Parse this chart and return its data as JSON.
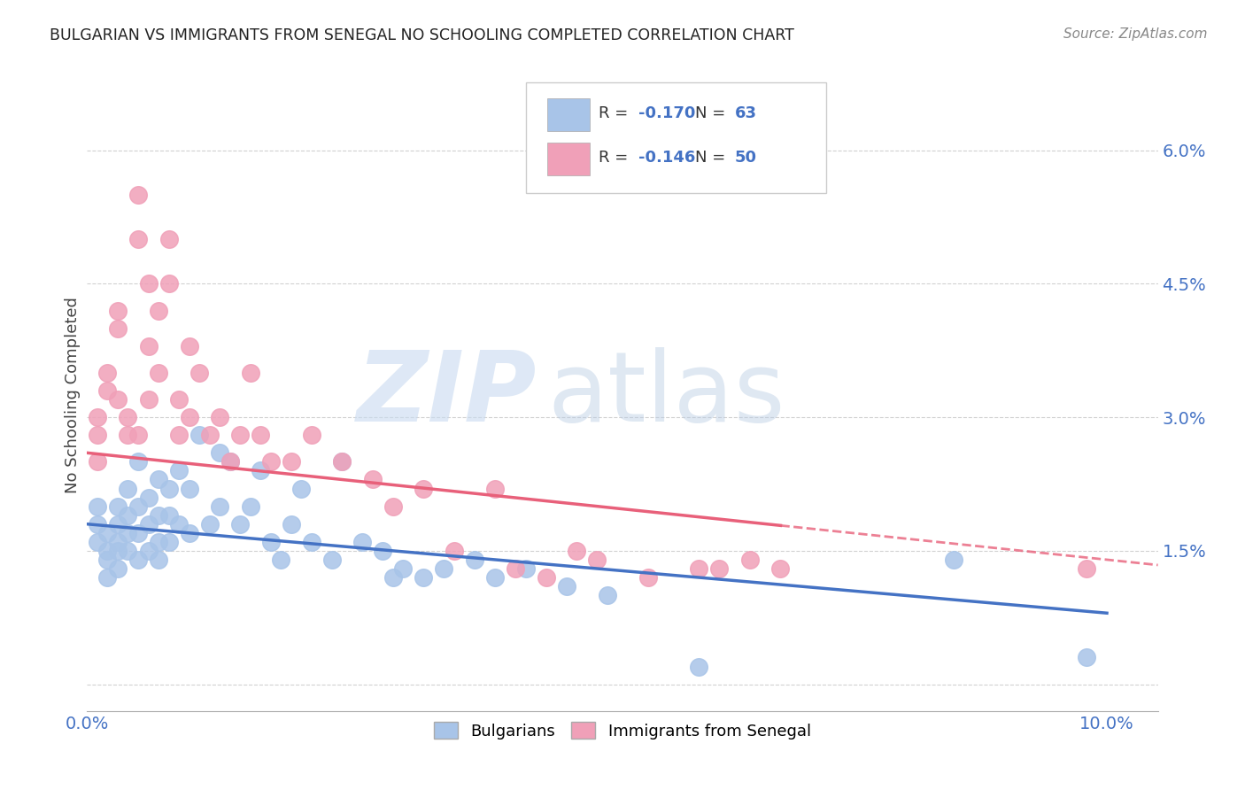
{
  "title": "BULGARIAN VS IMMIGRANTS FROM SENEGAL NO SCHOOLING COMPLETED CORRELATION CHART",
  "source": "Source: ZipAtlas.com",
  "ylabel": "No Schooling Completed",
  "xlim": [
    0.0,
    0.105
  ],
  "ylim": [
    -0.003,
    0.068
  ],
  "xticks": [
    0.0,
    0.02,
    0.04,
    0.06,
    0.08,
    0.1
  ],
  "xtick_labels": [
    "0.0%",
    "",
    "",
    "",
    "",
    "10.0%"
  ],
  "yticks_right": [
    0.0,
    0.015,
    0.03,
    0.045,
    0.06
  ],
  "ytick_labels_right": [
    "",
    "1.5%",
    "3.0%",
    "4.5%",
    "6.0%"
  ],
  "blue_color": "#4472c4",
  "pink_color": "#e8607a",
  "blue_scatter_color": "#a8c4e8",
  "pink_scatter_color": "#f0a0b8",
  "blue_trend_start_y": 0.018,
  "blue_trend_end_y": 0.008,
  "pink_trend_start_y": 0.026,
  "pink_trend_end_y": 0.014,
  "blue_points_x": [
    0.001,
    0.001,
    0.001,
    0.002,
    0.002,
    0.002,
    0.002,
    0.003,
    0.003,
    0.003,
    0.003,
    0.003,
    0.004,
    0.004,
    0.004,
    0.004,
    0.005,
    0.005,
    0.005,
    0.005,
    0.006,
    0.006,
    0.006,
    0.007,
    0.007,
    0.007,
    0.007,
    0.008,
    0.008,
    0.008,
    0.009,
    0.009,
    0.01,
    0.01,
    0.011,
    0.012,
    0.013,
    0.013,
    0.014,
    0.015,
    0.016,
    0.017,
    0.018,
    0.019,
    0.02,
    0.021,
    0.022,
    0.024,
    0.025,
    0.027,
    0.029,
    0.03,
    0.031,
    0.033,
    0.035,
    0.038,
    0.04,
    0.043,
    0.047,
    0.051,
    0.06,
    0.085,
    0.098
  ],
  "blue_points_y": [
    0.016,
    0.018,
    0.02,
    0.017,
    0.015,
    0.014,
    0.012,
    0.02,
    0.018,
    0.016,
    0.015,
    0.013,
    0.022,
    0.019,
    0.017,
    0.015,
    0.025,
    0.02,
    0.017,
    0.014,
    0.021,
    0.018,
    0.015,
    0.023,
    0.019,
    0.016,
    0.014,
    0.022,
    0.019,
    0.016,
    0.024,
    0.018,
    0.022,
    0.017,
    0.028,
    0.018,
    0.026,
    0.02,
    0.025,
    0.018,
    0.02,
    0.024,
    0.016,
    0.014,
    0.018,
    0.022,
    0.016,
    0.014,
    0.025,
    0.016,
    0.015,
    0.012,
    0.013,
    0.012,
    0.013,
    0.014,
    0.012,
    0.013,
    0.011,
    0.01,
    0.002,
    0.014,
    0.003
  ],
  "pink_points_x": [
    0.001,
    0.001,
    0.001,
    0.002,
    0.002,
    0.003,
    0.003,
    0.003,
    0.004,
    0.004,
    0.005,
    0.005,
    0.005,
    0.006,
    0.006,
    0.006,
    0.007,
    0.007,
    0.008,
    0.008,
    0.009,
    0.009,
    0.01,
    0.01,
    0.011,
    0.012,
    0.013,
    0.014,
    0.015,
    0.016,
    0.017,
    0.018,
    0.02,
    0.022,
    0.025,
    0.028,
    0.03,
    0.033,
    0.036,
    0.04,
    0.042,
    0.045,
    0.048,
    0.05,
    0.055,
    0.06,
    0.062,
    0.065,
    0.068,
    0.098
  ],
  "pink_points_y": [
    0.03,
    0.028,
    0.025,
    0.035,
    0.033,
    0.042,
    0.04,
    0.032,
    0.03,
    0.028,
    0.055,
    0.05,
    0.028,
    0.038,
    0.045,
    0.032,
    0.042,
    0.035,
    0.05,
    0.045,
    0.032,
    0.028,
    0.038,
    0.03,
    0.035,
    0.028,
    0.03,
    0.025,
    0.028,
    0.035,
    0.028,
    0.025,
    0.025,
    0.028,
    0.025,
    0.023,
    0.02,
    0.022,
    0.015,
    0.022,
    0.013,
    0.012,
    0.015,
    0.014,
    0.012,
    0.013,
    0.013,
    0.014,
    0.013,
    0.013
  ]
}
